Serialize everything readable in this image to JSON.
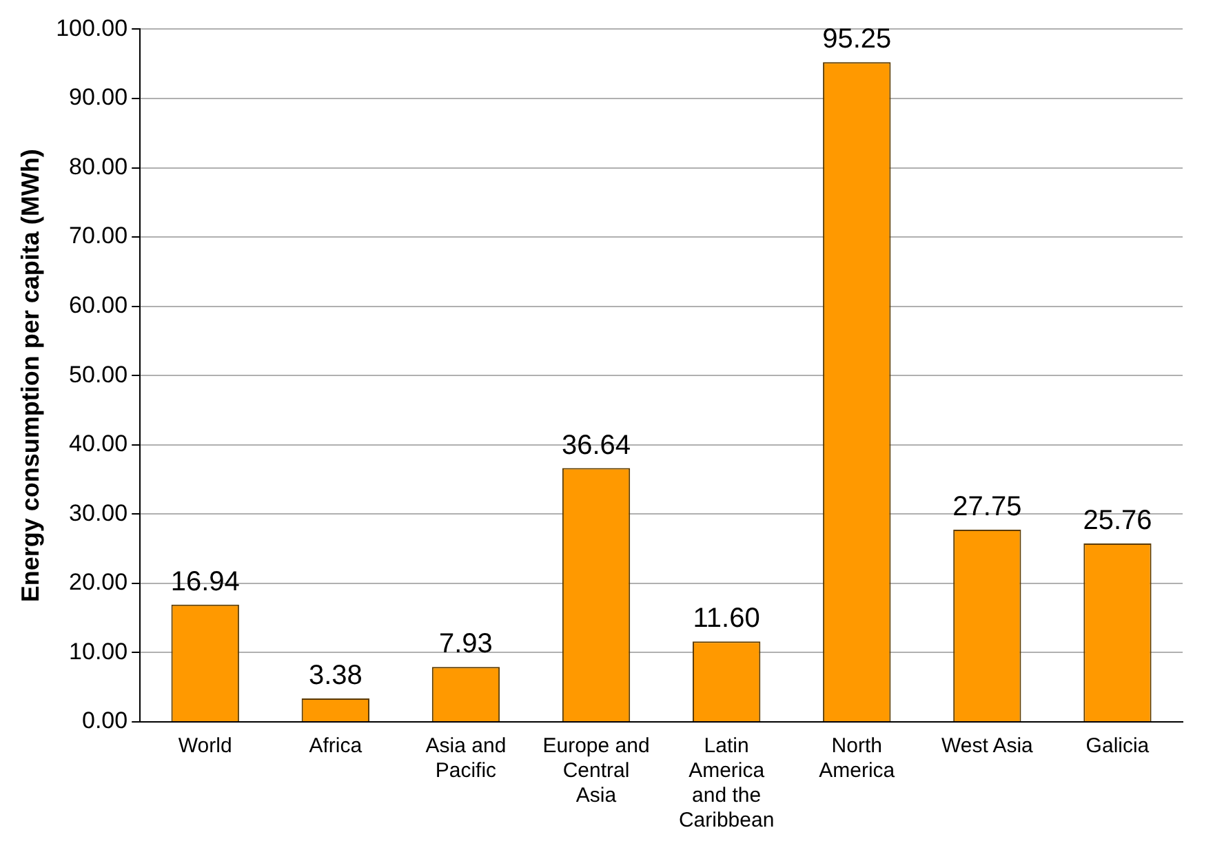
{
  "chart_data": {
    "type": "bar",
    "ylabel": "Energy consumption per capita (MWh)",
    "categories": [
      "World",
      "Africa",
      "Asia and Pacific",
      "Europe and Central Asia",
      "Latin America and the Caribbean",
      "North America",
      "West Asia",
      "Galicia"
    ],
    "values": [
      16.94,
      3.38,
      7.93,
      36.64,
      11.6,
      95.25,
      27.75,
      25.76
    ],
    "value_labels": [
      "16.94",
      "3.38",
      "7.93",
      "36.64",
      "11.60",
      "95.25",
      "27.75",
      "25.76"
    ],
    "color": "#ff9900",
    "ylim": [
      0,
      100
    ],
    "yticks": [
      {
        "value": 0,
        "label": "0.00"
      },
      {
        "value": 10,
        "label": "10.00"
      },
      {
        "value": 20,
        "label": "20.00"
      },
      {
        "value": 30,
        "label": "30.00"
      },
      {
        "value": 40,
        "label": "40.00"
      },
      {
        "value": 50,
        "label": "50.00"
      },
      {
        "value": 60,
        "label": "60.00"
      },
      {
        "value": 70,
        "label": "70.00"
      },
      {
        "value": 80,
        "label": "80.00"
      },
      {
        "value": 90,
        "label": "90.00"
      },
      {
        "value": 100,
        "label": "100.00"
      }
    ],
    "grid": "y",
    "legend": false
  }
}
